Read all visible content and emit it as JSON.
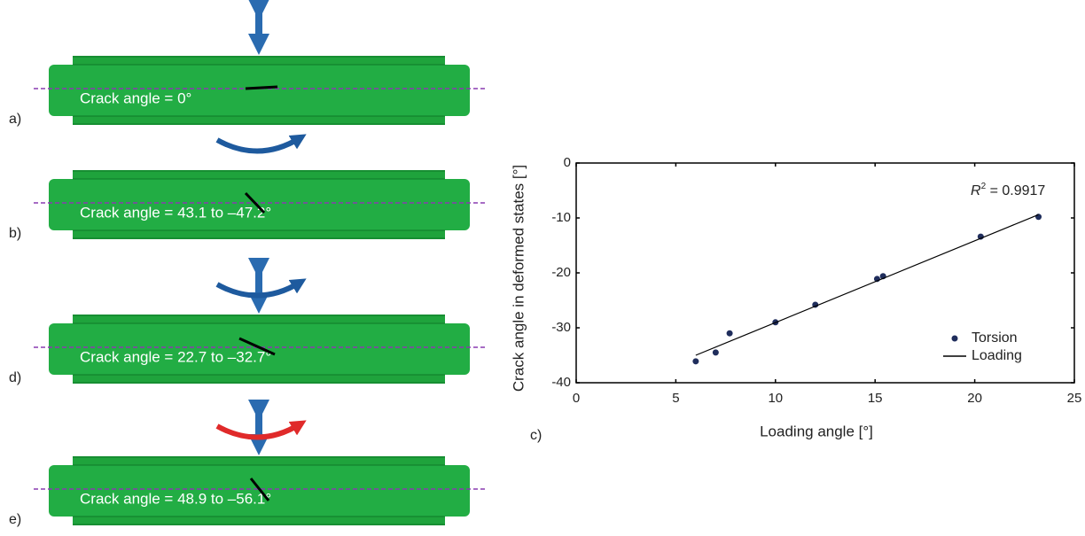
{
  "panels": [
    {
      "label": "a)",
      "text": "Crack angle = 0°"
    },
    {
      "label": "b)",
      "text": "Crack angle = 43.1 to –47.2°"
    },
    {
      "label": "d)",
      "text": "Crack angle = 22.7 to –32.7°"
    },
    {
      "label": "e)",
      "text": "Crack angle = 48.9 to –56.1°"
    }
  ],
  "chart_data": {
    "type": "scatter",
    "panel_label": "c)",
    "x_label": "Loading angle [°]",
    "y_label": "Crack angle in deformed states [°]",
    "annotation": {
      "symbol": "R",
      "exponent": "2",
      "text": " = 0.9917"
    },
    "xlim": [
      0,
      25
    ],
    "xticks": [
      0,
      5,
      10,
      15,
      20,
      25
    ],
    "ylim": [
      -40,
      0
    ],
    "yticks": [
      0,
      -10,
      -20,
      -30,
      -40
    ],
    "legend": "lower right",
    "series": [
      {
        "name": "Torsion",
        "color": "#1f2d5c",
        "x": [
          6,
          7,
          7.7,
          10,
          12,
          15.1,
          15.4,
          20.3,
          23.2
        ],
        "values": [
          -36.1,
          -34.5,
          -31,
          -29,
          -25.8,
          -21.1,
          -20.6,
          -13.4,
          -9.8
        ]
      },
      {
        "name": "Loading",
        "type": "line",
        "color": "#000000",
        "x": [
          6,
          23.2
        ],
        "values": [
          -35,
          -9.4
        ]
      }
    ]
  }
}
